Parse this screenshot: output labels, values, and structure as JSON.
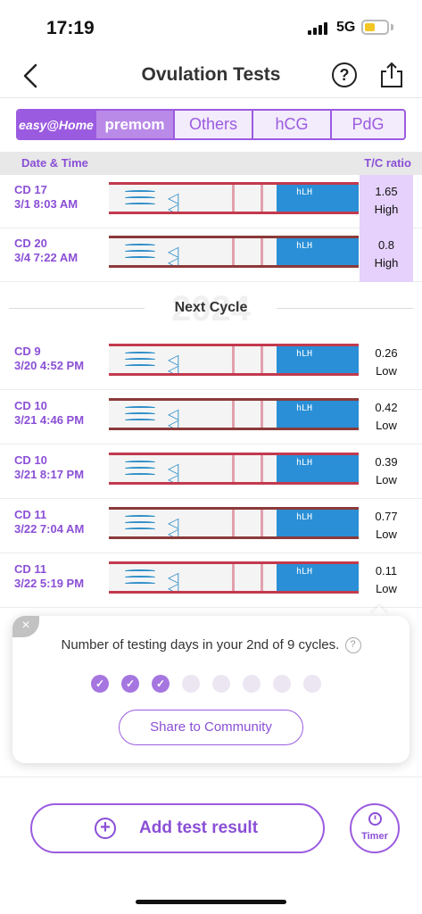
{
  "status": {
    "time": "17:19",
    "network": "5G"
  },
  "header": {
    "title": "Ovulation Tests",
    "help_symbol": "?"
  },
  "brand_tabs": [
    {
      "label": "easy@Home",
      "active": true
    },
    {
      "label": "premom",
      "active": false
    },
    {
      "label": "Others",
      "active": false
    },
    {
      "label": "hCG",
      "active": false
    },
    {
      "label": "PdG",
      "active": false
    }
  ],
  "columns": {
    "left": "Date & Time",
    "right": "T/C ratio"
  },
  "prev_cycle_rows": [
    {
      "cd": "CD 17",
      "datetime": "3/1 8:03 AM",
      "ratio": "1.65",
      "level": "High",
      "strip_label": "hLH"
    },
    {
      "cd": "CD 20",
      "datetime": "3/4 7:22 AM",
      "ratio": "0.8",
      "level": "High",
      "strip_label": "hLH"
    }
  ],
  "cycle_divider": {
    "watermark": "2024",
    "label": "Next Cycle"
  },
  "rows": [
    {
      "cd": "CD 9",
      "datetime": "3/20 4:52 PM",
      "ratio": "0.26",
      "level": "Low",
      "strip_label": "hLH"
    },
    {
      "cd": "CD 10",
      "datetime": "3/21 4:46 PM",
      "ratio": "0.42",
      "level": "Low",
      "strip_label": "hLH"
    },
    {
      "cd": "CD 10",
      "datetime": "3/21 8:17 PM",
      "ratio": "0.39",
      "level": "Low",
      "strip_label": "hLH"
    },
    {
      "cd": "CD 11",
      "datetime": "3/22 7:04 AM",
      "ratio": "0.77",
      "level": "Low",
      "strip_label": "hLH"
    },
    {
      "cd": "CD 11",
      "datetime": "3/22 5:19 PM",
      "ratio": "0.11",
      "level": "Low",
      "strip_label": "hLH"
    }
  ],
  "popup": {
    "close_symbol": "×",
    "text": "Number of testing days in your 2nd of 9 cycles.",
    "help_symbol": "?",
    "progress_done": 3,
    "progress_total": 8,
    "check_symbol": "✓",
    "share_label": "Share to Community"
  },
  "bottom": {
    "add_symbol": "+",
    "add_label": "Add test result",
    "timer_label": "Timer"
  },
  "colors": {
    "accent": "#9b5be0",
    "high_bg": "#e5d1fb",
    "strip_blue": "#2a8fd6"
  }
}
